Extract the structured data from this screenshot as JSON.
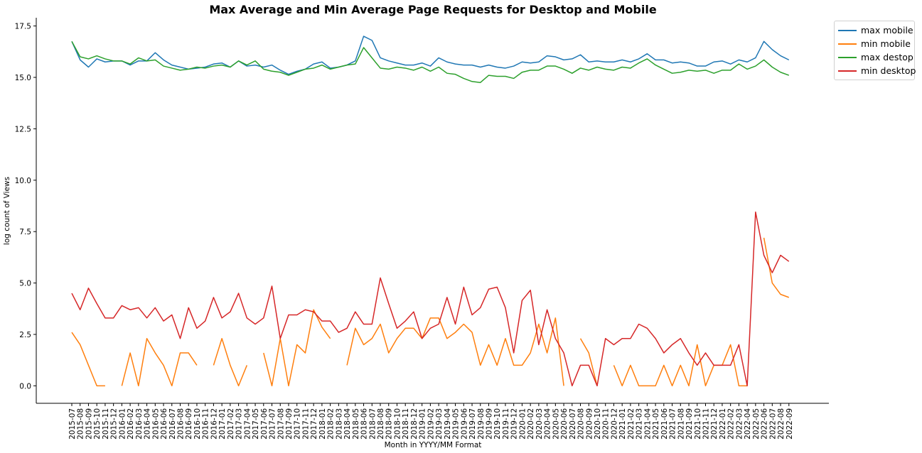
{
  "chart_data": {
    "type": "line",
    "title": "Max Average and Min Average Page Requests for Desktop and Mobile",
    "xlabel": "Month in YYYY/MM Format",
    "ylabel": "log count of Views",
    "ylim": [
      -0.85,
      17.9
    ],
    "yticks": [
      0.0,
      2.5,
      5.0,
      7.5,
      10.0,
      12.5,
      15.0,
      17.5
    ],
    "ytick_labels": [
      "0.0",
      "2.5",
      "5.0",
      "7.5",
      "10.0",
      "12.5",
      "15.0",
      "17.5"
    ],
    "grid": false,
    "legend_position": "upper right, outside plot",
    "x": [
      "2015-07",
      "2015-08",
      "2015-09",
      "2015-10",
      "2015-11",
      "2015-12",
      "2016-01",
      "2016-02",
      "2016-03",
      "2016-04",
      "2016-05",
      "2016-06",
      "2016-07",
      "2016-08",
      "2016-09",
      "2016-10",
      "2016-11",
      "2016-12",
      "2017-01",
      "2017-02",
      "2017-03",
      "2017-04",
      "2017-05",
      "2017-06",
      "2017-07",
      "2017-08",
      "2017-09",
      "2017-10",
      "2017-11",
      "2017-12",
      "2018-01",
      "2018-02",
      "2018-03",
      "2018-04",
      "2018-05",
      "2018-06",
      "2018-07",
      "2018-08",
      "2018-09",
      "2018-10",
      "2018-11",
      "2018-12",
      "2019-01",
      "2019-02",
      "2019-03",
      "2019-04",
      "2019-05",
      "2019-06",
      "2019-07",
      "2019-08",
      "2019-09",
      "2019-10",
      "2019-11",
      "2019-12",
      "2020-01",
      "2020-02",
      "2020-03",
      "2020-04",
      "2020-05",
      "2020-06",
      "2020-07",
      "2020-08",
      "2020-09",
      "2020-10",
      "2020-11",
      "2020-12",
      "2021-01",
      "2021-02",
      "2021-03",
      "2021-04",
      "2021-05",
      "2021-06",
      "2021-07",
      "2021-08",
      "2021-09",
      "2021-10",
      "2021-11",
      "2021-12",
      "2022-01",
      "2022-02",
      "2022-03",
      "2022-04",
      "2022-05",
      "2022-06",
      "2022-07",
      "2022-08",
      "2022-09"
    ],
    "series": [
      {
        "name": "max mobile",
        "color": "#1f77b4",
        "values": [
          16.75,
          15.85,
          15.5,
          15.9,
          15.75,
          15.8,
          15.8,
          15.6,
          15.8,
          15.8,
          16.2,
          15.85,
          15.6,
          15.5,
          15.4,
          15.45,
          15.5,
          15.65,
          15.7,
          15.5,
          15.8,
          15.55,
          15.6,
          15.5,
          15.6,
          15.35,
          15.15,
          15.3,
          15.4,
          15.65,
          15.75,
          15.45,
          15.5,
          15.6,
          15.8,
          17.0,
          16.8,
          15.95,
          15.8,
          15.7,
          15.6,
          15.6,
          15.7,
          15.55,
          15.95,
          15.75,
          15.65,
          15.6,
          15.6,
          15.5,
          15.6,
          15.5,
          15.45,
          15.55,
          15.75,
          15.7,
          15.75,
          16.05,
          16.0,
          15.85,
          15.9,
          16.1,
          15.75,
          15.8,
          15.75,
          15.75,
          15.85,
          15.75,
          15.9,
          16.15,
          15.85,
          15.85,
          15.7,
          15.75,
          15.7,
          15.55,
          15.55,
          15.75,
          15.8,
          15.65,
          15.85,
          15.75,
          15.95,
          16.75,
          16.35,
          16.05,
          15.85
        ]
      },
      {
        "name": "min mobile",
        "color": "#ff7f0e",
        "values": [
          2.6,
          2.0,
          1.0,
          0.0,
          0.0,
          null,
          0.0,
          1.6,
          0.0,
          2.3,
          1.6,
          1.0,
          0.0,
          1.6,
          1.6,
          1.0,
          null,
          1.0,
          2.3,
          1.0,
          0.0,
          1.0,
          null,
          1.6,
          0.0,
          2.3,
          0.0,
          2.0,
          1.6,
          3.7,
          2.85,
          2.3,
          null,
          1.0,
          2.8,
          2.0,
          2.3,
          3.0,
          1.6,
          2.3,
          2.8,
          2.8,
          2.3,
          3.3,
          3.3,
          2.3,
          2.6,
          3.0,
          2.6,
          1.0,
          2.0,
          1.0,
          2.3,
          1.0,
          1.0,
          1.6,
          3.0,
          1.6,
          3.3,
          0.0,
          null,
          2.3,
          1.6,
          0.0,
          null,
          1.0,
          0.0,
          1.0,
          0.0,
          0.0,
          0.0,
          1.0,
          0.0,
          1.0,
          0.0,
          2.0,
          0.0,
          1.0,
          1.0,
          2.0,
          0.0,
          0.0,
          null,
          7.2,
          5.0,
          4.45,
          4.3
        ]
      },
      {
        "name": "max destop",
        "color": "#2ca02c",
        "values": [
          16.75,
          16.0,
          15.9,
          16.05,
          15.9,
          15.8,
          15.8,
          15.65,
          15.95,
          15.8,
          15.85,
          15.55,
          15.45,
          15.35,
          15.4,
          15.5,
          15.45,
          15.55,
          15.6,
          15.5,
          15.8,
          15.6,
          15.8,
          15.4,
          15.3,
          15.25,
          15.1,
          15.25,
          15.4,
          15.45,
          15.6,
          15.4,
          15.5,
          15.6,
          15.65,
          16.45,
          15.95,
          15.45,
          15.4,
          15.5,
          15.45,
          15.35,
          15.5,
          15.3,
          15.5,
          15.2,
          15.15,
          14.95,
          14.8,
          14.75,
          15.1,
          15.05,
          15.05,
          14.95,
          15.25,
          15.35,
          15.35,
          15.55,
          15.55,
          15.4,
          15.2,
          15.45,
          15.35,
          15.5,
          15.4,
          15.35,
          15.5,
          15.45,
          15.7,
          15.9,
          15.6,
          15.4,
          15.2,
          15.25,
          15.35,
          15.3,
          15.35,
          15.2,
          15.35,
          15.35,
          15.65,
          15.4,
          15.55,
          15.85,
          15.5,
          15.25,
          15.1
        ]
      },
      {
        "name": "min desktop",
        "color": "#d62728",
        "values": [
          4.5,
          3.7,
          4.75,
          4.0,
          3.3,
          3.3,
          3.9,
          3.7,
          3.8,
          3.3,
          3.8,
          3.15,
          3.45,
          2.3,
          3.8,
          2.8,
          3.15,
          4.3,
          3.3,
          3.6,
          4.5,
          3.3,
          3.0,
          3.3,
          4.85,
          2.3,
          3.45,
          3.45,
          3.7,
          3.6,
          3.15,
          3.15,
          2.6,
          2.8,
          3.6,
          3.0,
          3.0,
          5.25,
          4.0,
          2.8,
          3.15,
          3.6,
          2.3,
          2.8,
          3.0,
          4.3,
          3.0,
          4.8,
          3.45,
          3.8,
          4.7,
          4.8,
          3.8,
          1.6,
          4.15,
          4.65,
          2.0,
          3.7,
          2.3,
          1.6,
          0.0,
          1.0,
          1.0,
          0.0,
          2.3,
          2.0,
          2.3,
          2.3,
          3.0,
          2.8,
          2.3,
          1.6,
          2.0,
          2.3,
          1.6,
          1.0,
          1.6,
          1.0,
          1.0,
          1.0,
          2.0,
          0.0,
          8.45,
          6.35,
          5.5,
          6.35,
          6.05
        ]
      }
    ]
  }
}
